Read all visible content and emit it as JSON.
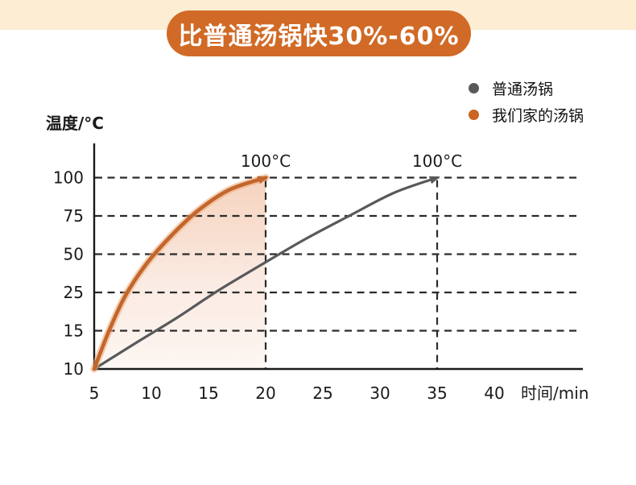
{
  "banner": {
    "title": "比普通汤锅快30%-60%"
  },
  "legend": [
    {
      "label": "普通汤锅",
      "color": "#58595B"
    },
    {
      "label": "我们家的汤锅",
      "color": "#CB651F"
    }
  ],
  "colors": {
    "band": "#FCEDD3",
    "banner_bg": "#D16A26",
    "banner_text": "#FFFFFF",
    "axis": "#1A1A1A",
    "grid": "#2B2B2B",
    "ordinary": "#58595B",
    "ours": "#C3662B",
    "ours_glow": "rgba(235,170,120,0.55)",
    "fill_top": "rgba(232,148,96,0.40)",
    "fill_mid": "rgba(246,216,200,0.50)",
    "fill_bottom": "rgba(252,244,239,0.70)"
  },
  "chart_data": {
    "type": "line",
    "title": "比普通汤锅快30%-60%",
    "xlabel": "时间/min",
    "ylabel": "温度/°C",
    "xticks": [
      5,
      10,
      15,
      20,
      25,
      30,
      35,
      40
    ],
    "yticks": [
      10,
      15,
      25,
      50,
      75,
      100
    ],
    "y_axis_note": "nonlinear tick spacing as printed, ticks equally spaced",
    "grid": "horizontal-dashed",
    "legend_position": "top-right",
    "series": [
      {
        "name": "普通汤锅",
        "color": "#58595B",
        "points": [
          [
            5,
            10
          ],
          [
            8.75,
            13.5
          ],
          [
            12.3,
            18.5
          ],
          [
            15.8,
            26
          ],
          [
            19.6,
            43
          ],
          [
            23.5,
            60
          ],
          [
            27.3,
            75
          ],
          [
            31.2,
            90
          ],
          [
            35,
            100
          ]
        ],
        "reaches_boil_min": 35,
        "end_label": "100°C",
        "fill_under": false
      },
      {
        "name": "我们家的汤锅",
        "color": "#C3662B",
        "points": [
          [
            5,
            10
          ],
          [
            6.3,
            15
          ],
          [
            7.7,
            24
          ],
          [
            9.5,
            43
          ],
          [
            11.6,
            61
          ],
          [
            14,
            78
          ],
          [
            16.8,
            92
          ],
          [
            20,
            100
          ]
        ],
        "reaches_boil_min": 20,
        "end_label": "100°C",
        "fill_under": true
      }
    ]
  }
}
